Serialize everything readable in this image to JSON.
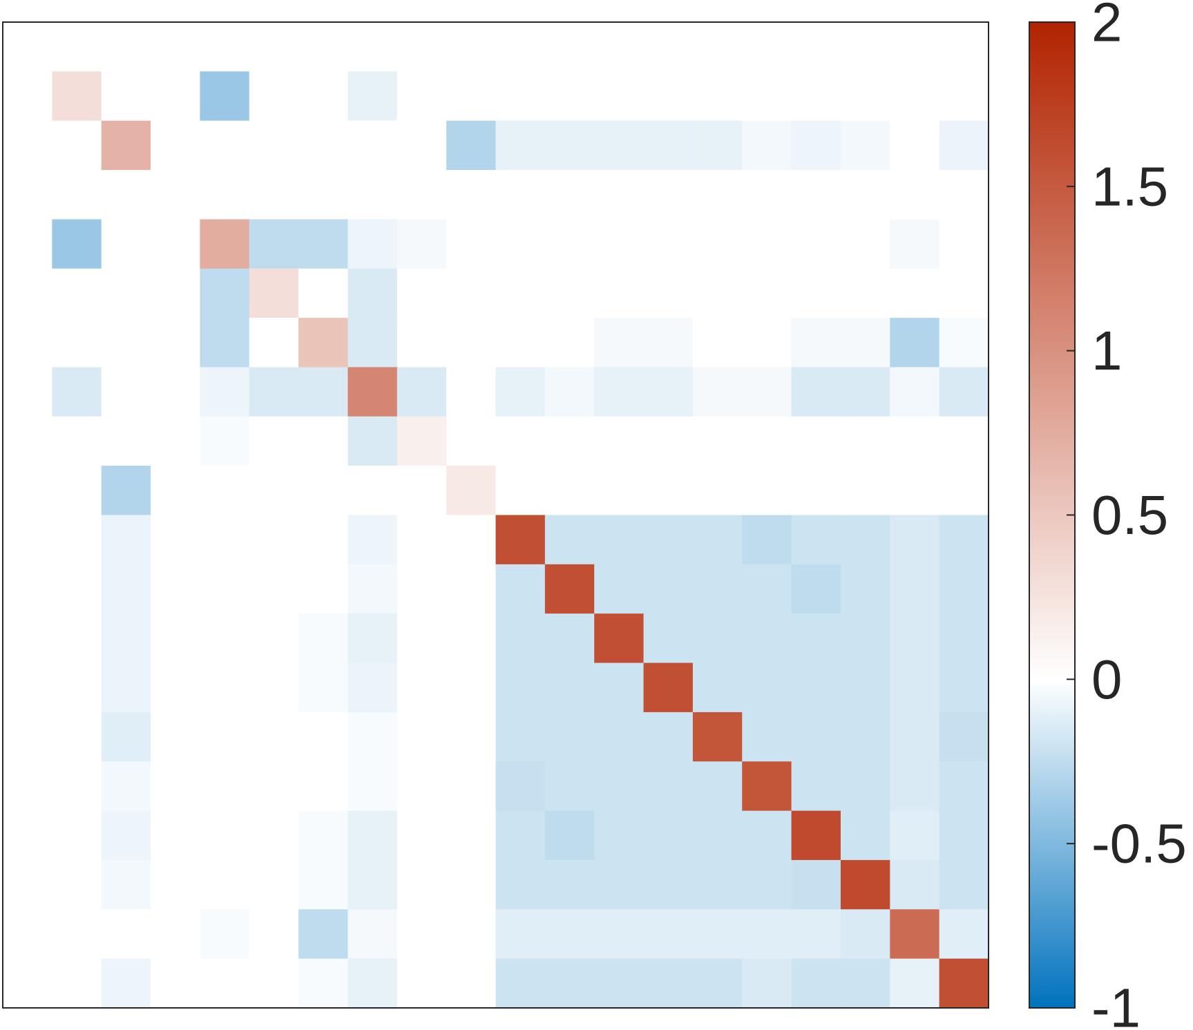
{
  "chart_data": {
    "type": "heatmap",
    "rows": 20,
    "cols": 20,
    "colorbar": {
      "min": -1,
      "max": 2,
      "ticks": [
        {
          "value": 2,
          "label": "2"
        },
        {
          "value": 1.5,
          "label": "1.5"
        },
        {
          "value": 1,
          "label": "1"
        },
        {
          "value": 0.5,
          "label": "0.5"
        },
        {
          "value": 0,
          "label": "0"
        },
        {
          "value": -0.5,
          "label": "-0.5"
        },
        {
          "value": -1,
          "label": "-1"
        }
      ],
      "colors": {
        "negative_end": "#0072bd",
        "zero": "#ffffff",
        "positive_end": "#b22300"
      }
    },
    "grid": false,
    "values": [
      [
        0,
        0,
        0,
        0,
        0,
        0,
        0,
        0,
        0,
        0,
        0,
        0,
        0,
        0,
        0,
        0,
        0,
        0,
        0,
        0
      ],
      [
        0,
        0.3,
        0,
        0,
        -0.4,
        0,
        0,
        -0.1,
        0,
        0,
        0,
        0,
        0,
        0,
        0,
        0,
        0,
        0,
        0,
        0
      ],
      [
        0,
        0,
        0.7,
        0,
        0,
        0,
        0,
        0,
        0,
        -0.3,
        -0.1,
        -0.1,
        -0.1,
        -0.1,
        -0.1,
        -0.05,
        -0.07,
        -0.05,
        0,
        -0.08
      ],
      [
        0,
        0,
        0,
        0,
        0,
        0,
        0,
        0,
        0,
        0,
        0,
        0,
        0,
        0,
        0,
        0,
        0,
        0,
        0,
        0
      ],
      [
        0,
        -0.4,
        0,
        0,
        0.75,
        -0.25,
        -0.25,
        -0.07,
        -0.04,
        0,
        0,
        0,
        0,
        0,
        0,
        0,
        0,
        0,
        -0.04,
        0
      ],
      [
        0,
        0,
        0,
        0,
        -0.25,
        0.3,
        0,
        -0.15,
        0,
        0,
        0,
        0,
        0,
        0,
        0,
        0,
        0,
        0,
        0,
        0
      ],
      [
        0,
        0,
        0,
        0,
        -0.25,
        0,
        0.55,
        -0.15,
        0,
        0,
        0,
        0,
        -0.04,
        -0.04,
        0,
        0,
        -0.04,
        -0.04,
        -0.3,
        -0.03
      ],
      [
        0,
        -0.15,
        0,
        0,
        -0.07,
        -0.15,
        -0.15,
        1.1,
        -0.15,
        0,
        -0.1,
        -0.05,
        -0.1,
        -0.1,
        -0.04,
        -0.04,
        -0.15,
        -0.15,
        -0.05,
        -0.15
      ],
      [
        0,
        0,
        0,
        0,
        -0.03,
        0,
        0,
        -0.15,
        0.15,
        0,
        0,
        0,
        0,
        0,
        0,
        0,
        0,
        0,
        0,
        0
      ],
      [
        0,
        0,
        -0.3,
        0,
        0,
        0,
        0,
        0,
        0,
        0.2,
        0,
        0,
        0,
        0,
        0,
        0,
        0,
        0,
        0,
        0
      ],
      [
        0,
        0,
        -0.08,
        0,
        0,
        0,
        0,
        -0.07,
        0,
        0,
        1.6,
        -0.2,
        -0.2,
        -0.2,
        -0.2,
        -0.25,
        -0.2,
        -0.2,
        -0.15,
        -0.2
      ],
      [
        0,
        0,
        -0.08,
        0,
        0,
        0,
        0,
        -0.05,
        0,
        0,
        -0.2,
        1.6,
        -0.2,
        -0.2,
        -0.2,
        -0.2,
        -0.25,
        -0.2,
        -0.15,
        -0.2
      ],
      [
        0,
        0,
        -0.08,
        0,
        0,
        0,
        -0.03,
        -0.1,
        0,
        0,
        -0.2,
        -0.2,
        1.6,
        -0.2,
        -0.2,
        -0.2,
        -0.2,
        -0.2,
        -0.15,
        -0.2
      ],
      [
        0,
        0,
        -0.08,
        0,
        0,
        0,
        -0.03,
        -0.08,
        0,
        0,
        -0.2,
        -0.2,
        -0.2,
        1.6,
        -0.2,
        -0.2,
        -0.2,
        -0.2,
        -0.15,
        -0.2
      ],
      [
        0,
        0,
        -0.12,
        0,
        0,
        0,
        0,
        -0.03,
        0,
        0,
        -0.2,
        -0.2,
        -0.2,
        -0.2,
        1.55,
        -0.2,
        -0.2,
        -0.2,
        -0.15,
        -0.22
      ],
      [
        0,
        0,
        -0.05,
        0,
        0,
        0,
        0,
        -0.03,
        0,
        0,
        -0.22,
        -0.2,
        -0.2,
        -0.2,
        -0.2,
        1.55,
        -0.2,
        -0.2,
        -0.15,
        -0.2
      ],
      [
        0,
        0,
        -0.07,
        0,
        0,
        0,
        -0.03,
        -0.1,
        0,
        0,
        -0.2,
        -0.25,
        -0.2,
        -0.2,
        -0.2,
        -0.2,
        1.65,
        -0.2,
        -0.12,
        -0.2
      ],
      [
        0,
        0,
        -0.05,
        0,
        0,
        0,
        -0.03,
        -0.1,
        0,
        0,
        -0.2,
        -0.2,
        -0.2,
        -0.2,
        -0.2,
        -0.2,
        -0.22,
        1.65,
        -0.15,
        -0.2
      ],
      [
        0,
        0,
        0,
        0,
        -0.03,
        0,
        -0.25,
        -0.04,
        0,
        0,
        -0.12,
        -0.12,
        -0.12,
        -0.12,
        -0.12,
        -0.12,
        -0.12,
        -0.15,
        1.35,
        -0.12
      ],
      [
        0,
        0,
        -0.07,
        0,
        0,
        0,
        -0.03,
        -0.1,
        0,
        0,
        -0.2,
        -0.2,
        -0.2,
        -0.2,
        -0.2,
        -0.15,
        -0.2,
        -0.2,
        -0.1,
        1.6
      ]
    ]
  }
}
